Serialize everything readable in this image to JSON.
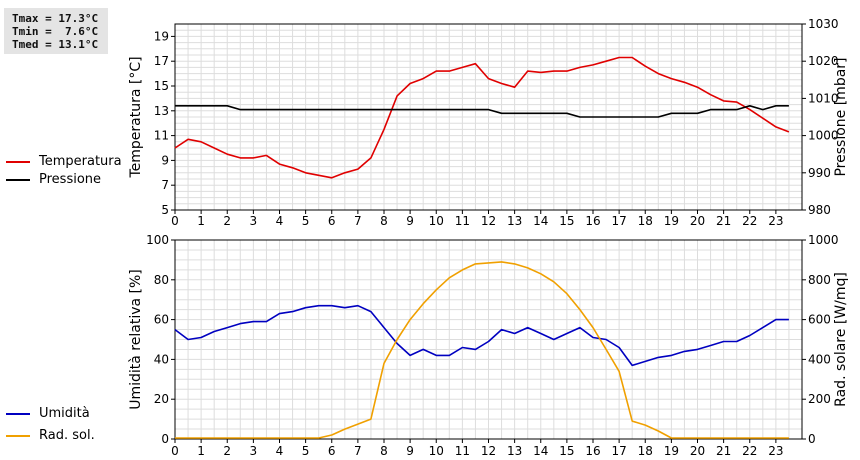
{
  "stats": {
    "tmax": "Tmax = 17.3°C",
    "tmin": "Tmin =  7.6°C",
    "tmed": "Tmed = 13.1°C"
  },
  "legend_top": [
    {
      "label": "Temperatura",
      "color": "#e00000"
    },
    {
      "label": "Pressione",
      "color": "#000000"
    }
  ],
  "legend_bottom": [
    {
      "label": "Umidità",
      "color": "#0000c0"
    },
    {
      "label": "Rad. sol.",
      "color": "#f0a000"
    }
  ],
  "chart_data": [
    {
      "type": "line",
      "x": [
        0,
        0.5,
        1,
        1.5,
        2,
        2.5,
        3,
        3.5,
        4,
        4.5,
        5,
        5.5,
        6,
        6.5,
        7,
        7.5,
        8,
        8.5,
        9,
        9.5,
        10,
        10.5,
        11,
        11.5,
        12,
        12.5,
        13,
        13.5,
        14,
        14.5,
        15,
        15.5,
        16,
        16.5,
        17,
        17.5,
        18,
        18.5,
        19,
        19.5,
        20,
        20.5,
        21,
        21.5,
        22,
        22.5,
        23,
        23.5
      ],
      "xticks": [
        "0",
        "1",
        "2",
        "3",
        "4",
        "5",
        "6",
        "7",
        "8",
        "9",
        "10",
        "11",
        "12",
        "13",
        "14",
        "15",
        "16",
        "17",
        "18",
        "19",
        "20",
        "21",
        "22",
        "23"
      ],
      "xlim": [
        0,
        24
      ],
      "ylabel": "Temperatura [°C]",
      "ylim": [
        5,
        20
      ],
      "yticks": [
        "5",
        "7",
        "9",
        "11",
        "13",
        "15",
        "17",
        "19"
      ],
      "y2label": "Pressione [mbar]",
      "y2lim": [
        980,
        1030
      ],
      "y2ticks": [
        "980",
        "990",
        "1000",
        "1010",
        "1020",
        "1030"
      ],
      "grid": true,
      "series": [
        {
          "name": "Temperatura",
          "axis": "left",
          "color": "#e00000",
          "values": [
            10.0,
            10.7,
            10.5,
            10.0,
            9.5,
            9.2,
            9.2,
            9.4,
            8.7,
            8.4,
            8.0,
            7.8,
            7.6,
            8.0,
            8.3,
            9.2,
            11.5,
            14.2,
            15.2,
            15.6,
            16.2,
            16.2,
            16.5,
            16.8,
            15.6,
            15.2,
            14.9,
            16.2,
            16.1,
            16.2,
            16.2,
            16.5,
            16.7,
            17.0,
            17.3,
            17.3,
            16.6,
            16.0,
            15.6,
            15.3,
            14.9,
            14.3,
            13.8,
            13.7,
            13.1,
            12.4,
            11.7,
            11.3
          ]
        },
        {
          "name": "Pressione",
          "axis": "right",
          "color": "#000000",
          "values": [
            1008,
            1008,
            1008,
            1008,
            1008,
            1007,
            1007,
            1007,
            1007,
            1007,
            1007,
            1007,
            1007,
            1007,
            1007,
            1007,
            1007,
            1007,
            1007,
            1007,
            1007,
            1007,
            1007,
            1007,
            1007,
            1006,
            1006,
            1006,
            1006,
            1006,
            1006,
            1005,
            1005,
            1005,
            1005,
            1005,
            1005,
            1005,
            1006,
            1006,
            1006,
            1007,
            1007,
            1007,
            1008,
            1007,
            1008,
            1008
          ]
        }
      ]
    },
    {
      "type": "line",
      "x": [
        0,
        0.5,
        1,
        1.5,
        2,
        2.5,
        3,
        3.5,
        4,
        4.5,
        5,
        5.5,
        6,
        6.5,
        7,
        7.5,
        8,
        8.5,
        9,
        9.5,
        10,
        10.5,
        11,
        11.5,
        12,
        12.5,
        13,
        13.5,
        14,
        14.5,
        15,
        15.5,
        16,
        16.5,
        17,
        17.5,
        18,
        18.5,
        19,
        19.5,
        20,
        20.5,
        21,
        21.5,
        22,
        22.5,
        23,
        23.5
      ],
      "xticks": [
        "0",
        "1",
        "2",
        "3",
        "4",
        "5",
        "6",
        "7",
        "8",
        "9",
        "10",
        "11",
        "12",
        "13",
        "14",
        "15",
        "16",
        "17",
        "18",
        "19",
        "20",
        "21",
        "22",
        "23"
      ],
      "xlim": [
        0,
        24
      ],
      "ylabel": "Umidità relativa [%]",
      "ylim": [
        0,
        100
      ],
      "yticks": [
        "0",
        "20",
        "40",
        "60",
        "80",
        "100"
      ],
      "y2label": "Rad. solare [W/mq]",
      "y2lim": [
        0,
        1000
      ],
      "y2ticks": [
        "0",
        "200",
        "400",
        "600",
        "800",
        "1000"
      ],
      "grid": true,
      "series": [
        {
          "name": "Umidità",
          "axis": "left",
          "color": "#0000c0",
          "values": [
            55,
            50,
            51,
            54,
            56,
            58,
            59,
            59,
            63,
            64,
            66,
            67,
            67,
            66,
            67,
            64,
            56,
            48,
            42,
            45,
            42,
            42,
            46,
            45,
            49,
            55,
            53,
            56,
            53,
            50,
            53,
            56,
            51,
            50,
            46,
            37,
            39,
            41,
            42,
            44,
            45,
            47,
            49,
            49,
            52,
            56,
            60,
            60
          ]
        },
        {
          "name": "Rad. sol.",
          "axis": "right",
          "color": "#f0a000",
          "values": [
            5,
            5,
            5,
            5,
            5,
            5,
            5,
            5,
            5,
            5,
            5,
            5,
            20,
            50,
            75,
            100,
            380,
            500,
            600,
            680,
            750,
            810,
            850,
            880,
            885,
            890,
            880,
            860,
            830,
            790,
            730,
            650,
            560,
            450,
            340,
            90,
            70,
            40,
            5,
            5,
            5,
            5,
            5,
            5,
            5,
            5,
            5,
            5
          ]
        }
      ]
    }
  ]
}
